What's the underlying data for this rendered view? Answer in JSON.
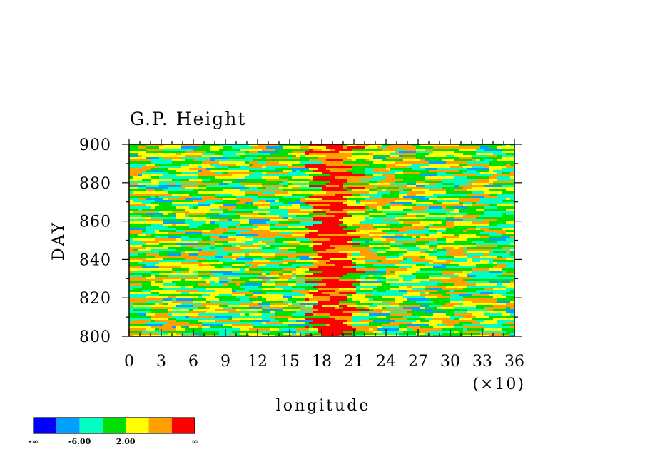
{
  "chart_data": {
    "type": "heatmap",
    "title": "G.P. Height",
    "xlabel": "longitude",
    "ylabel": "DAY",
    "x_multiplier_label": "(×10)",
    "xlim": [
      0,
      36
    ],
    "ylim": [
      800,
      900
    ],
    "x_ticks": [
      "0",
      "3",
      "6",
      "9",
      "12",
      "15",
      "18",
      "21",
      "24",
      "27",
      "30",
      "33",
      "36"
    ],
    "y_ticks": [
      "800",
      "820",
      "840",
      "860",
      "880",
      "900"
    ],
    "colorbar": {
      "colors": [
        "#0000ff",
        "#00a0ff",
        "#00ffc0",
        "#00e000",
        "#ffff00",
        "#ffa000",
        "#ff0000"
      ],
      "tick_labels": [
        "-∞",
        "-6.00",
        "2.00",
        "∞"
      ]
    },
    "description_bands": [
      {
        "x_center": 18.5,
        "x_halfwidth": 1.2,
        "category": "red",
        "note": "persistent high values near longitude 180"
      }
    ]
  }
}
